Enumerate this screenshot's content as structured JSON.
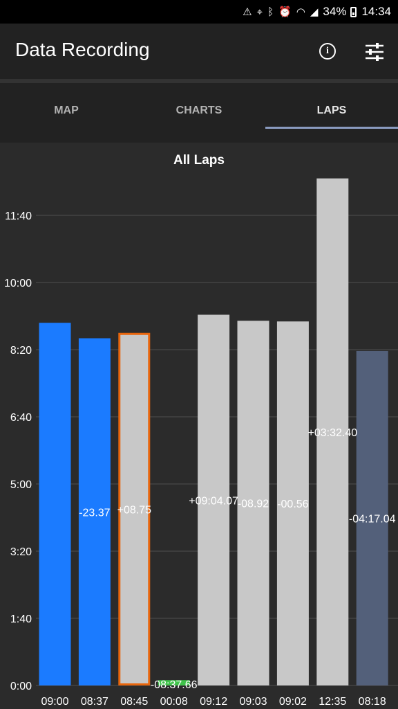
{
  "status_bar": {
    "battery_percent": "34%",
    "time": "14:34",
    "icons": [
      "warning-icon",
      "location-icon",
      "bluetooth-icon",
      "alarm-icon",
      "wifi-icon",
      "signal-icon",
      "battery-icon"
    ]
  },
  "app_bar": {
    "title": "Data Recording",
    "actions": [
      "info-icon",
      "tune-icon"
    ]
  },
  "tabs": [
    {
      "label": "MAP",
      "active": false
    },
    {
      "label": "CHARTS",
      "active": false
    },
    {
      "label": "LAPS",
      "active": true
    }
  ],
  "colors": {
    "blue": "#1b7bff",
    "grey": "#c8c8c8",
    "green": "#3fc44a",
    "slate": "#53607a",
    "highlight": "#e8650c"
  },
  "chart_data": {
    "type": "bar",
    "title": "All Laps",
    "y_tick_labels": [
      "0:00",
      "1:40",
      "3:20",
      "5:00",
      "6:40",
      "8:20",
      "10:00",
      "11:40"
    ],
    "y_ticks_seconds": [
      0,
      100,
      200,
      300,
      400,
      500,
      600,
      700
    ],
    "ylim": [
      0,
      700
    ],
    "grid": true,
    "categories": [
      "09:00",
      "08:37",
      "08:45",
      "00:08",
      "09:12",
      "09:03",
      "09:02",
      "12:35",
      "08:18"
    ],
    "values_seconds": [
      540,
      517,
      525,
      8,
      552,
      543,
      542,
      755,
      498
    ],
    "bar_colors": [
      "blue",
      "blue",
      "grey",
      "green",
      "grey",
      "grey",
      "grey",
      "grey",
      "slate"
    ],
    "highlighted_index": 2,
    "deltas": [
      "",
      "-23.37",
      "+08.75",
      "-08:37.66",
      "+09:04.07",
      "-08.92",
      "-00.56",
      "+03:32.40",
      "-04:17.04"
    ]
  }
}
